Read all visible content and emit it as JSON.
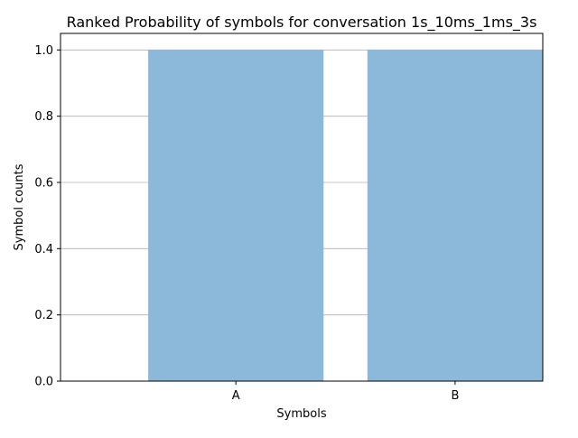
{
  "chart_data": {
    "type": "bar",
    "title": "Ranked Probability of symbols for conversation 1s_10ms_1ms_3s",
    "xlabel": "Symbols",
    "ylabel": "Symbol counts",
    "categories": [
      "A",
      "B"
    ],
    "values": [
      1.0,
      1.0
    ],
    "ylim": [
      0,
      1.05
    ],
    "yticks": [
      0.0,
      0.2,
      0.4,
      0.6,
      0.8,
      1.0
    ],
    "ytick_labels": [
      "0.0",
      "0.2",
      "0.4",
      "0.6",
      "0.8",
      "1.0"
    ],
    "grid": "horizontal",
    "legend": "none",
    "bar_color": "#8cb8d9",
    "grid_color": "#b0b0b0",
    "axis_color": "#000000"
  }
}
